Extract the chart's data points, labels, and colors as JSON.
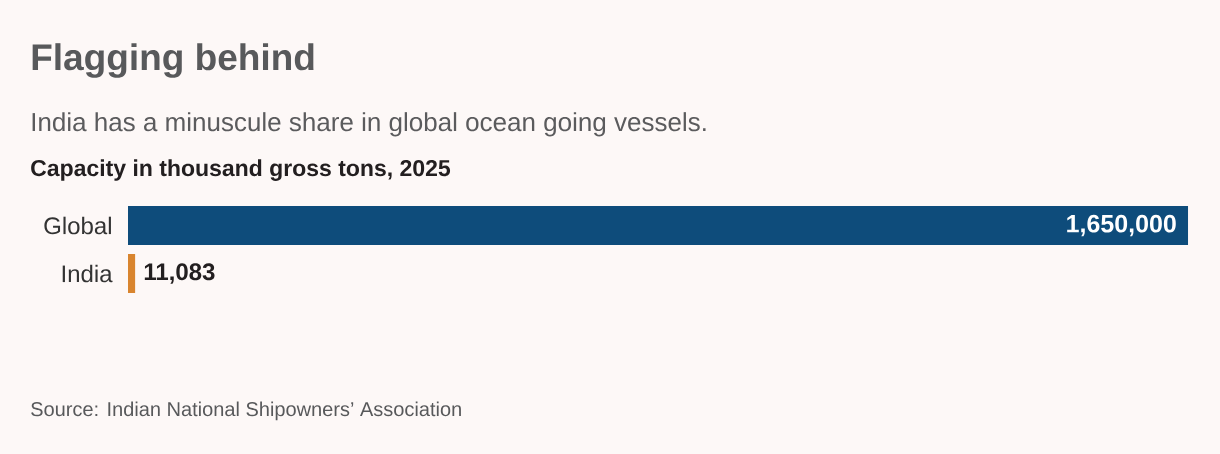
{
  "chart_data": {
    "type": "bar",
    "orientation": "horizontal",
    "title": "Flagging behind",
    "subtitle": "India has a minuscule share in global ocean going vessels.",
    "xlabel": "Capacity in thousand gross tons, 2025",
    "categories": [
      "Global",
      "India"
    ],
    "values": [
      1650000,
      11083
    ],
    "colors": [
      "#0e4c7b",
      "#d9852f"
    ],
    "value_labels": [
      "1,650,000",
      "11,083"
    ],
    "xlim": [
      0,
      1650000
    ],
    "tick_labels": "y",
    "annotations": [
      "Source: Indian National Shipowners’ Association"
    ]
  }
}
